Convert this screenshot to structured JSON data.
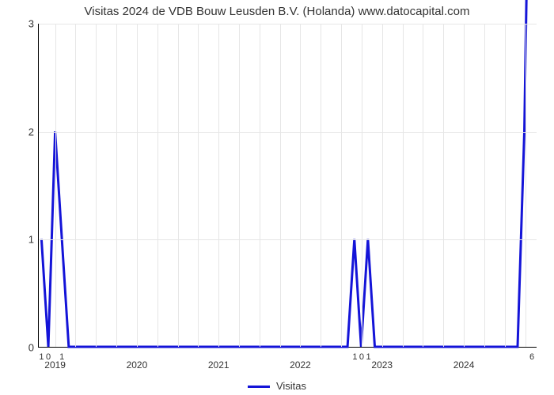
{
  "chart": {
    "type": "line",
    "title": "Visitas 2024 de VDB Bouw Leusden B.V. (Holanda) www.datocapital.com",
    "title_fontsize": 15,
    "background_color": "#ffffff",
    "grid_color": "#e6e6e6",
    "axis_color": "#000000",
    "line_color": "#1414d8",
    "line_width": 3,
    "y": {
      "min": 0,
      "max": 3,
      "ticks": [
        0,
        1,
        2,
        3
      ],
      "label_fontsize": 13
    },
    "x": {
      "min": 2018.8,
      "max": 2024.9,
      "year_ticks": [
        2019,
        2020,
        2021,
        2022,
        2023,
        2024
      ],
      "grid_step_months": 3,
      "label_fontsize": 12
    },
    "legend": {
      "label": "Visitas",
      "position": "bottom-center"
    },
    "point_label_fontsize": 11,
    "series": {
      "points": [
        {
          "x": 2018.833,
          "y": 1,
          "label": "1"
        },
        {
          "x": 2018.917,
          "y": 0,
          "label": "0"
        },
        {
          "x": 2019.0,
          "y": 2
        },
        {
          "x": 2019.083,
          "y": 1,
          "label": "1"
        },
        {
          "x": 2019.167,
          "y": 0
        },
        {
          "x": 2022.583,
          "y": 0
        },
        {
          "x": 2022.667,
          "y": 1,
          "label": "1"
        },
        {
          "x": 2022.75,
          "y": 0,
          "label": "0"
        },
        {
          "x": 2022.833,
          "y": 1,
          "label": "1"
        },
        {
          "x": 2022.917,
          "y": 0
        },
        {
          "x": 2024.667,
          "y": 0
        },
        {
          "x": 2024.75,
          "y": 2
        },
        {
          "x": 2024.833,
          "y": 6,
          "label": "6"
        }
      ]
    }
  }
}
